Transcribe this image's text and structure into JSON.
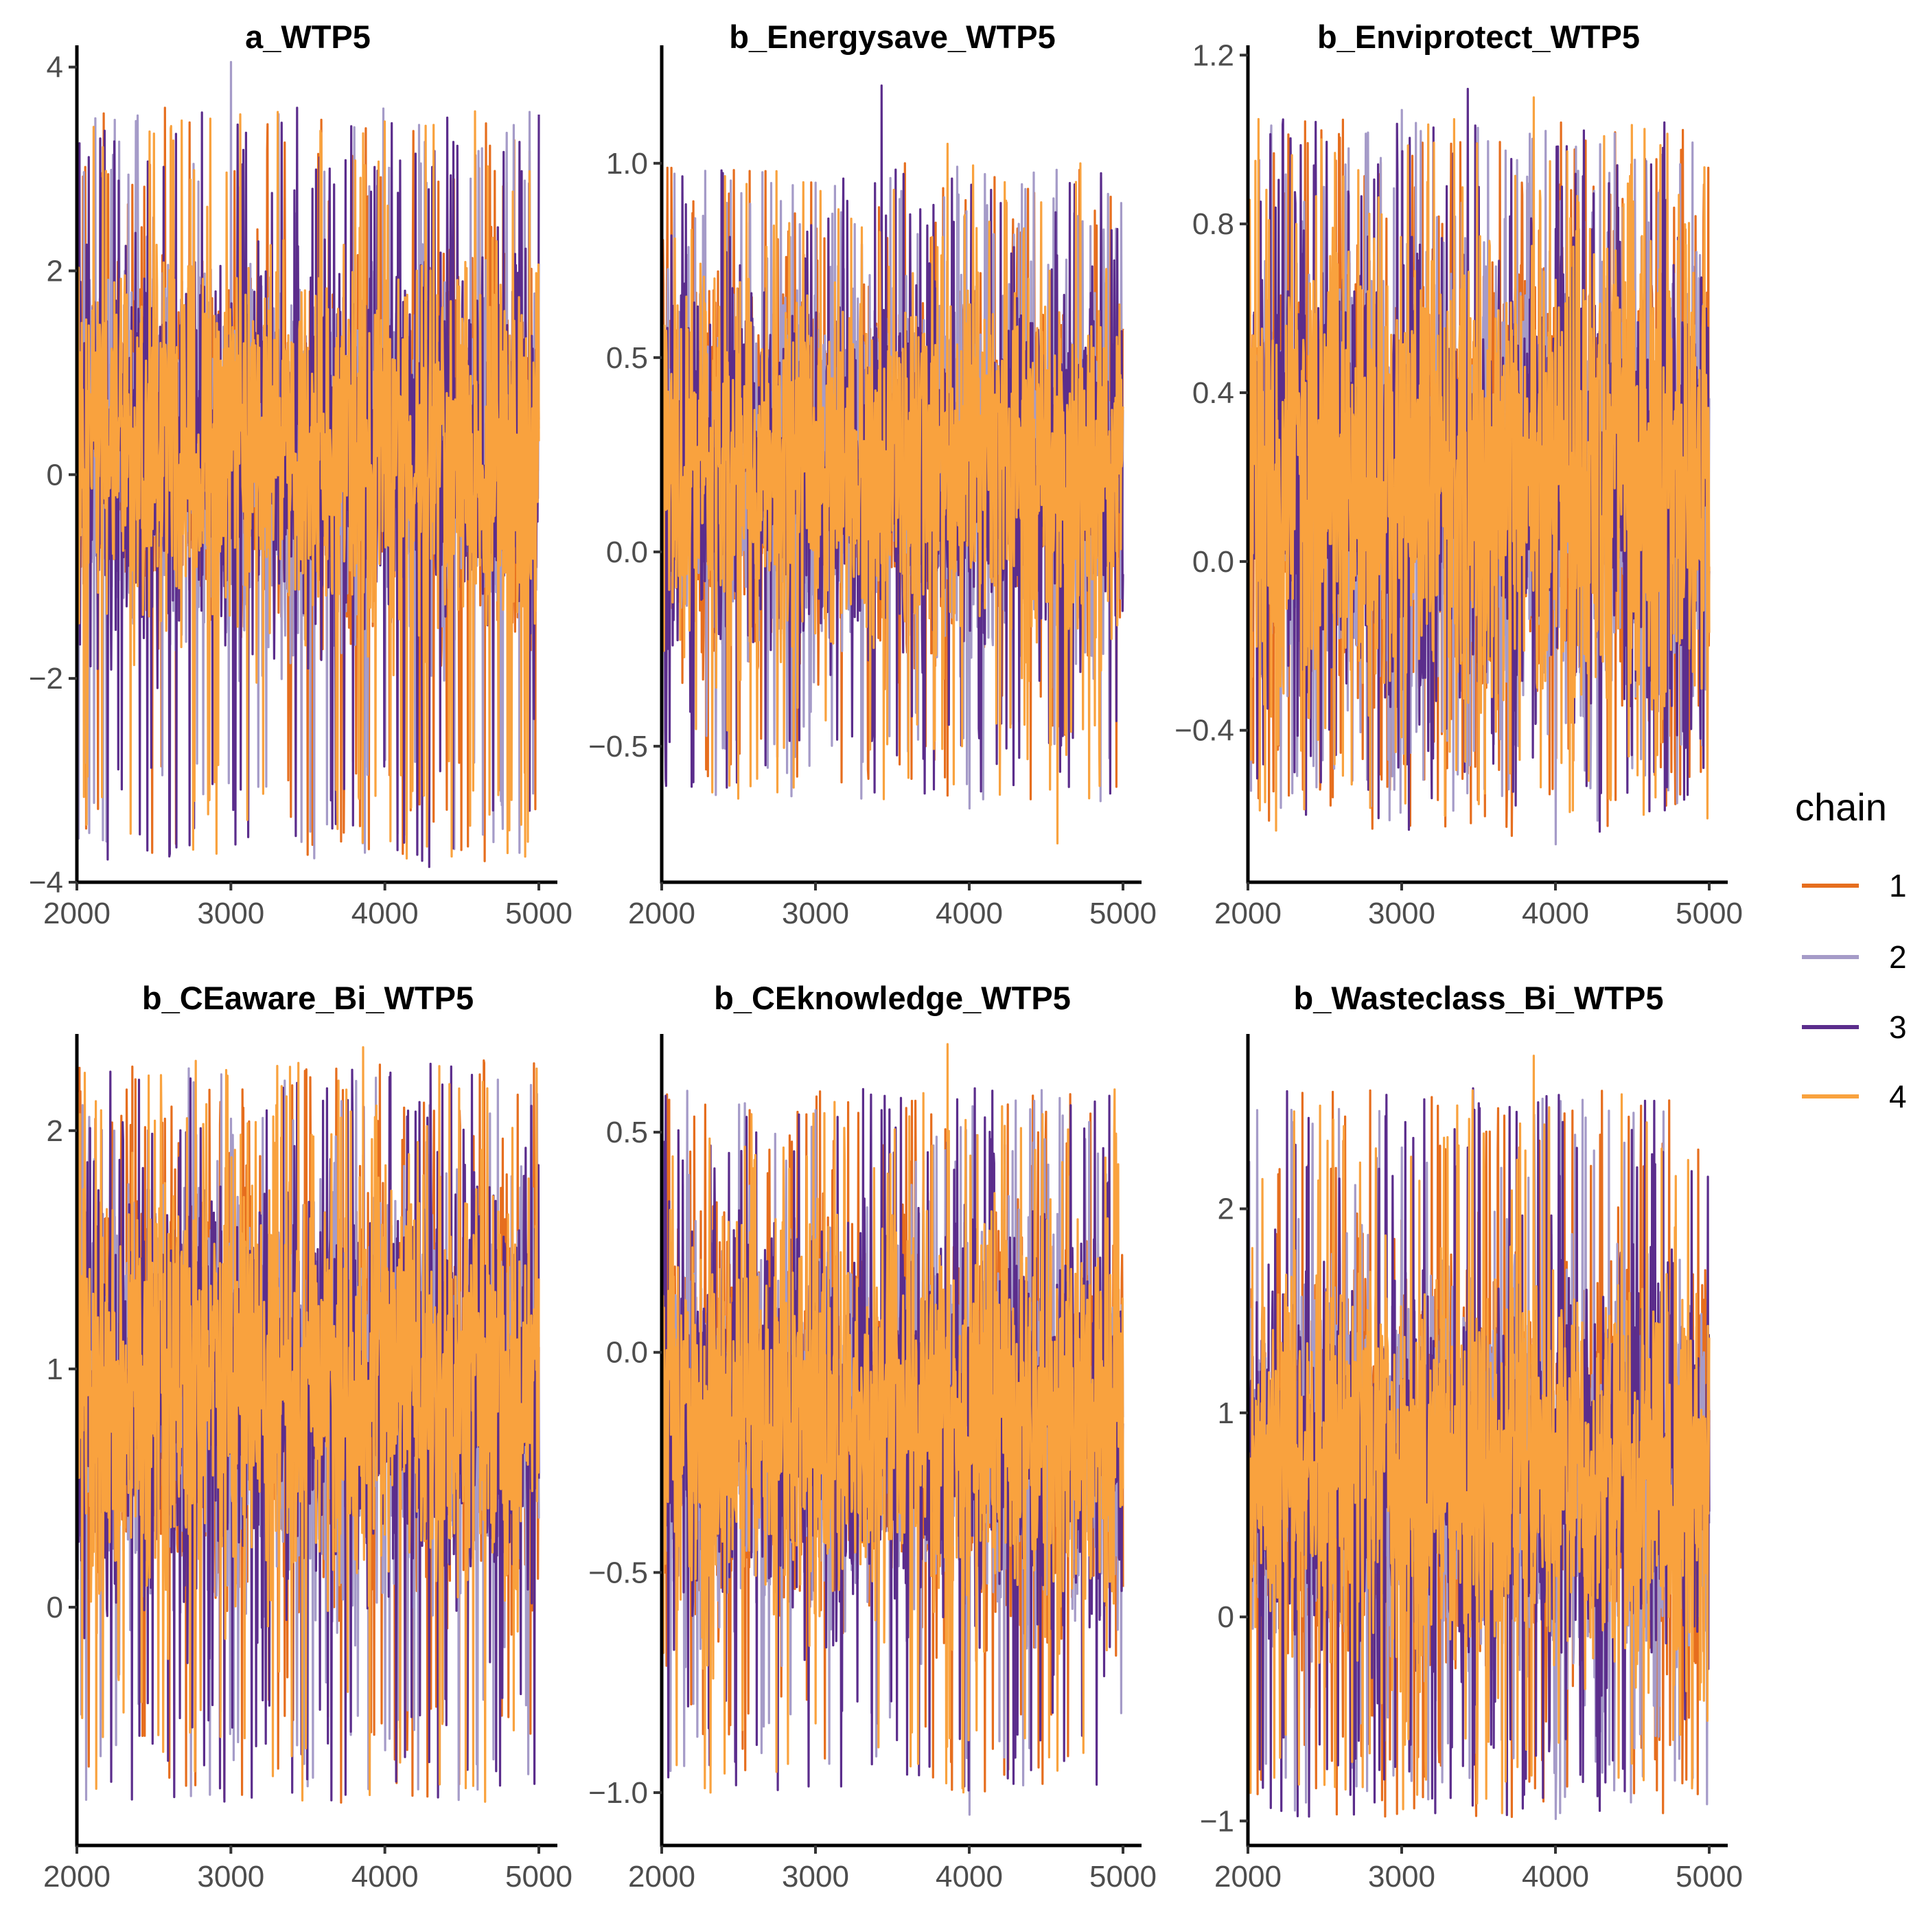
{
  "chart_data": [
    {
      "type": "line",
      "title": "a_WTP5",
      "xlim": [
        2000,
        5000
      ],
      "ylim": [
        -4.0,
        4.2
      ],
      "xticks": [
        2000,
        3000,
        4000,
        5000
      ],
      "xtick_labels": [
        "2000",
        "3000",
        "4000",
        "5000"
      ],
      "yticks": [
        -4,
        -2,
        0,
        2,
        4
      ],
      "ytick_labels": [
        "−4",
        "−2",
        "0",
        "2",
        "4"
      ],
      "center": 0.25,
      "band": 1.2,
      "spike_up": 3.6,
      "spike_down": -3.8,
      "series": [
        {
          "name": "1",
          "approx_max": 3.6,
          "approx_min": -3.6
        },
        {
          "name": "2",
          "approx_max": 4.05,
          "approx_min": -2.8
        },
        {
          "name": "3",
          "approx_max": 3.6,
          "approx_min": -3.85
        },
        {
          "name": "4",
          "approx_max": 3.35,
          "approx_min": -3.1
        }
      ]
    },
    {
      "type": "line",
      "title": "b_Energysave_WTP5",
      "xlim": [
        2000,
        5000
      ],
      "ylim": [
        -0.85,
        1.3
      ],
      "xticks": [
        2000,
        3000,
        4000,
        5000
      ],
      "xtick_labels": [
        "2000",
        "3000",
        "4000",
        "5000"
      ],
      "yticks": [
        -0.5,
        0.0,
        0.5,
        1.0
      ],
      "ytick_labels": [
        "−0.5",
        "0.0",
        "0.5",
        "1.0"
      ],
      "center": 0.22,
      "band": 0.32,
      "spike_up": 1.0,
      "spike_down": -0.65,
      "series": [
        {
          "name": "1",
          "approx_max": 0.98,
          "approx_min": -0.5
        },
        {
          "name": "2",
          "approx_max": 0.95,
          "approx_min": -0.66
        },
        {
          "name": "3",
          "approx_max": 1.2,
          "approx_min": -0.6
        },
        {
          "name": "4",
          "approx_max": 1.05,
          "approx_min": -0.75
        }
      ]
    },
    {
      "type": "line",
      "title": "b_Enviprotect_WTP5",
      "xlim": [
        2000,
        5000
      ],
      "ylim": [
        -0.76,
        1.22
      ],
      "xticks": [
        2000,
        3000,
        4000,
        5000
      ],
      "xtick_labels": [
        "2000",
        "3000",
        "4000",
        "5000"
      ],
      "yticks": [
        -0.4,
        0.0,
        0.4,
        0.8,
        1.2
      ],
      "ytick_labels": [
        "−0.4",
        "0.0",
        "0.4",
        "0.8",
        "1.2"
      ],
      "center": 0.2,
      "band": 0.38,
      "spike_up": 1.05,
      "spike_down": -0.64,
      "series": [
        {
          "name": "1",
          "approx_max": 0.95,
          "approx_min": -0.65
        },
        {
          "name": "2",
          "approx_max": 1.07,
          "approx_min": -0.67
        },
        {
          "name": "3",
          "approx_max": 1.12,
          "approx_min": -0.64
        },
        {
          "name": "4",
          "approx_max": 1.1,
          "approx_min": -0.6
        }
      ]
    },
    {
      "type": "line",
      "title": "b_CEaware_Bi_WTP5",
      "xlim": [
        2000,
        5000
      ],
      "ylim": [
        -1.0,
        2.4
      ],
      "xticks": [
        2000,
        3000,
        4000,
        5000
      ],
      "xtick_labels": [
        "2000",
        "3000",
        "4000",
        "5000"
      ],
      "yticks": [
        0,
        1,
        2
      ],
      "ytick_labels": [
        "0",
        "1",
        "2"
      ],
      "center": 0.92,
      "band": 0.58,
      "spike_up": 2.3,
      "spike_down": -0.82,
      "series": [
        {
          "name": "1",
          "approx_max": 2.05,
          "approx_min": -0.82
        },
        {
          "name": "2",
          "approx_max": 2.05,
          "approx_min": -0.6
        },
        {
          "name": "3",
          "approx_max": 2.2,
          "approx_min": -0.65
        },
        {
          "name": "4",
          "approx_max": 2.35,
          "approx_min": -0.75
        }
      ]
    },
    {
      "type": "line",
      "title": "b_CEknowledge_WTP5",
      "xlim": [
        2000,
        5000
      ],
      "ylim": [
        -1.12,
        0.72
      ],
      "xticks": [
        2000,
        3000,
        4000,
        5000
      ],
      "xtick_labels": [
        "2000",
        "3000",
        "4000",
        "5000"
      ],
      "yticks": [
        -1.0,
        -0.5,
        0.0,
        0.5
      ],
      "ytick_labels": [
        "−1.0",
        "−0.5",
        "0.0",
        "0.5"
      ],
      "center": -0.15,
      "band": 0.3,
      "spike_up": 0.6,
      "spike_down": -1.0,
      "series": [
        {
          "name": "1",
          "approx_max": 0.55,
          "approx_min": -0.85
        },
        {
          "name": "2",
          "approx_max": 0.55,
          "approx_min": -1.05
        },
        {
          "name": "3",
          "approx_max": 0.55,
          "approx_min": -0.98
        },
        {
          "name": "4",
          "approx_max": 0.7,
          "approx_min": -0.95
        }
      ]
    },
    {
      "type": "line",
      "title": "b_Wasteclass_Bi_WTP5",
      "xlim": [
        2000,
        5000
      ],
      "ylim": [
        -1.12,
        2.85
      ],
      "xticks": [
        2000,
        3000,
        4000,
        5000
      ],
      "xtick_labels": [
        "2000",
        "3000",
        "4000",
        "5000"
      ],
      "yticks": [
        -1,
        0,
        1,
        2
      ],
      "ytick_labels": [
        "−1",
        "0",
        "1",
        "2"
      ],
      "center": 0.72,
      "band": 0.66,
      "spike_up": 2.6,
      "spike_down": -0.98,
      "series": [
        {
          "name": "1",
          "approx_max": 2.2,
          "approx_min": -0.98
        },
        {
          "name": "2",
          "approx_max": 2.3,
          "approx_min": -0.99
        },
        {
          "name": "3",
          "approx_max": 2.3,
          "approx_min": -0.95
        },
        {
          "name": "4",
          "approx_max": 2.75,
          "approx_min": -0.8
        }
      ]
    }
  ],
  "legend": {
    "title": "chain",
    "entries": [
      {
        "label": "1",
        "color": "#E66E1E"
      },
      {
        "label": "2",
        "color": "#A59BC8"
      },
      {
        "label": "3",
        "color": "#5B2D8C"
      },
      {
        "label": "4",
        "color": "#F9A23E"
      }
    ]
  }
}
